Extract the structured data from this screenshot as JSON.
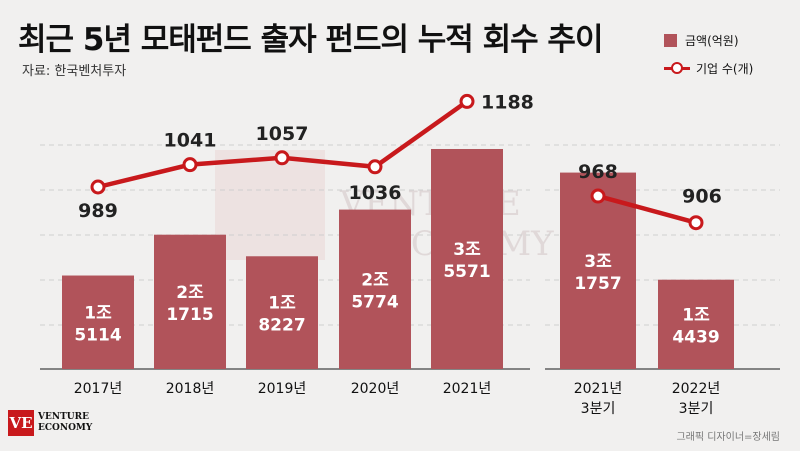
{
  "title": "최근 5년 모태펀드 출자 펀드의 누적 회수 추이",
  "source": "자료: 한국벤처투자",
  "credit": "그래픽 디자이너=장세림",
  "logo": {
    "mark": "VE",
    "line1": "VENTURE",
    "line2": "ECONOMY"
  },
  "colors": {
    "bar": "#b1535a",
    "line": "#c8191c",
    "background": "#f1f0ef"
  },
  "chart_data": [
    {
      "type": "bar",
      "categories": [
        "2017년",
        "2018년",
        "2019년",
        "2020년",
        "2021년"
      ],
      "series": [
        {
          "name": "금액(억원)",
          "values": [
            15114,
            21715,
            18227,
            25774,
            35571
          ],
          "labels": [
            [
              "1조",
              "5114"
            ],
            [
              "2조",
              "1715"
            ],
            [
              "1조",
              "8227"
            ],
            [
              "2조",
              "5774"
            ],
            [
              "3조",
              "5571"
            ]
          ]
        },
        {
          "name": "기업 수(개)",
          "type": "line",
          "values": [
            989,
            1041,
            1057,
            1036,
            1188
          ]
        }
      ]
    },
    {
      "type": "bar",
      "categories": [
        [
          "2021년",
          "3분기"
        ],
        [
          "2022년",
          "3분기"
        ]
      ],
      "series": [
        {
          "name": "금액(억원)",
          "values": [
            31757,
            14439
          ],
          "labels": [
            [
              "3조",
              "1757"
            ],
            [
              "1조",
              "4439"
            ]
          ]
        },
        {
          "name": "기업 수(개)",
          "type": "line",
          "values": [
            968,
            906
          ]
        }
      ]
    }
  ],
  "legend": [
    {
      "label": "금액(억원)",
      "icon": "bar-swatch"
    },
    {
      "label": "기업 수(개)",
      "icon": "line-marker"
    }
  ]
}
